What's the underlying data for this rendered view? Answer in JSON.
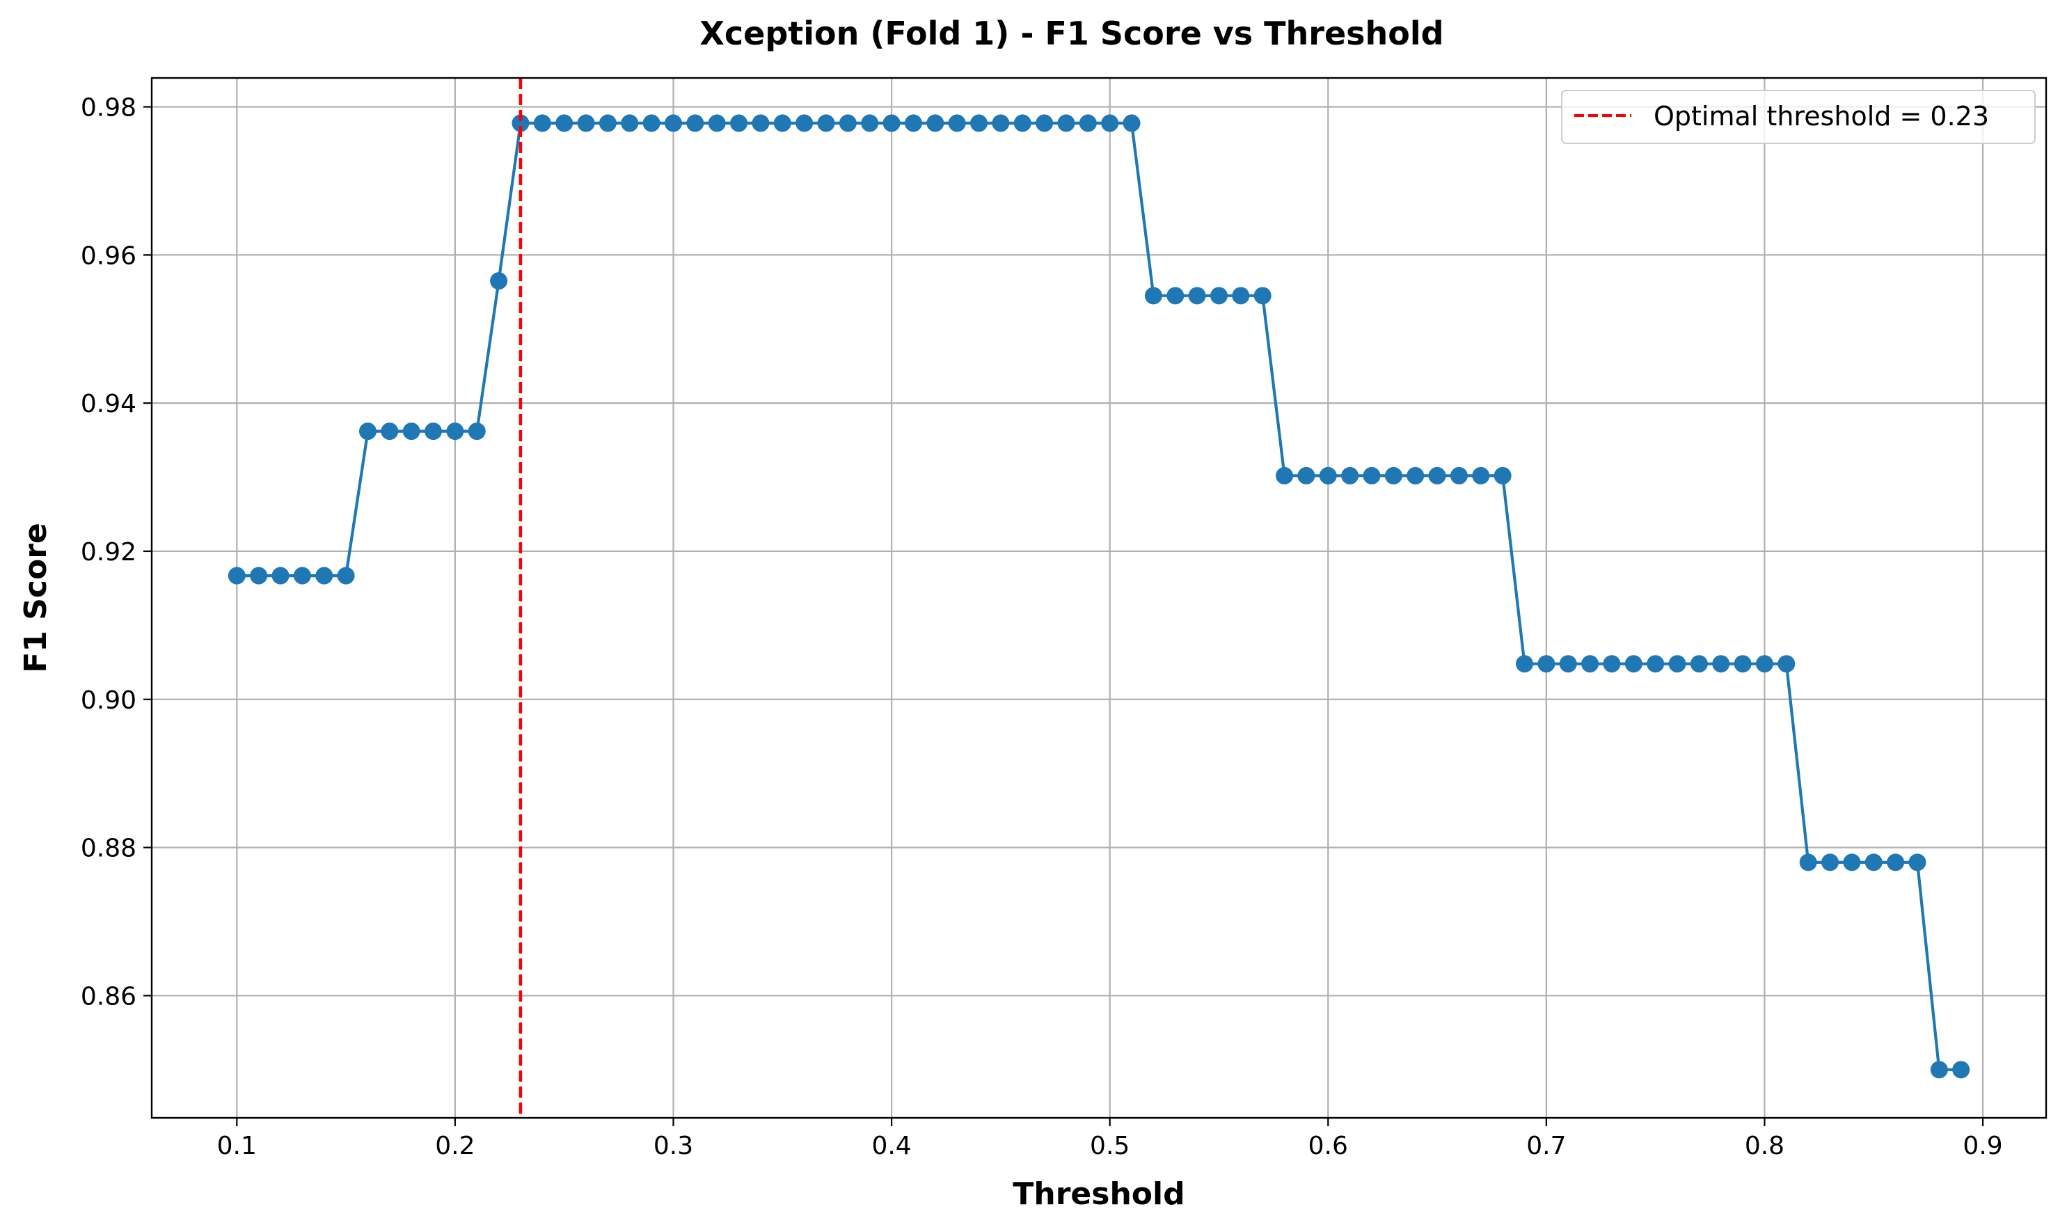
{
  "chart_data": {
    "type": "line",
    "title": "Xception (Fold 1) - F1 Score vs Threshold",
    "xlabel": "Threshold",
    "ylabel": "F1 Score",
    "xlim": [
      0.061,
      0.929
    ],
    "ylim": [
      0.8435,
      0.9839
    ],
    "xticks": [
      0.1,
      0.2,
      0.3,
      0.4,
      0.5,
      0.6,
      0.7,
      0.8,
      0.9
    ],
    "xtick_labels": [
      "0.1",
      "0.2",
      "0.3",
      "0.4",
      "0.5",
      "0.6",
      "0.7",
      "0.8",
      "0.9"
    ],
    "yticks": [
      0.86,
      0.88,
      0.9,
      0.92,
      0.94,
      0.96,
      0.98
    ],
    "ytick_labels": [
      "0.86",
      "0.88",
      "0.90",
      "0.92",
      "0.94",
      "0.96",
      "0.98"
    ],
    "grid": true,
    "legend_position": "top-right",
    "series": [
      {
        "marker": "circle",
        "color": "#1f77b4",
        "x": [
          0.1,
          0.11,
          0.12,
          0.13,
          0.14,
          0.15,
          0.16,
          0.17,
          0.18,
          0.19,
          0.2,
          0.21,
          0.22,
          0.23,
          0.24,
          0.25,
          0.26,
          0.27,
          0.28,
          0.29,
          0.3,
          0.31,
          0.32,
          0.33,
          0.34,
          0.35,
          0.36,
          0.37,
          0.38,
          0.39,
          0.4,
          0.41,
          0.42,
          0.43,
          0.44,
          0.45,
          0.46,
          0.47,
          0.48,
          0.49,
          0.5,
          0.51,
          0.52,
          0.53,
          0.54,
          0.55,
          0.56,
          0.57,
          0.58,
          0.59,
          0.6,
          0.61,
          0.62,
          0.63,
          0.64,
          0.65,
          0.66,
          0.67,
          0.68,
          0.69,
          0.7,
          0.71,
          0.72,
          0.73,
          0.74,
          0.75,
          0.76,
          0.77,
          0.78,
          0.79,
          0.8,
          0.81,
          0.82,
          0.83,
          0.84,
          0.85,
          0.86,
          0.87,
          0.88,
          0.89
        ],
        "y": [
          0.9167,
          0.9167,
          0.9167,
          0.9167,
          0.9167,
          0.9167,
          0.9362,
          0.9362,
          0.9362,
          0.9362,
          0.9362,
          0.9362,
          0.9565,
          0.9778,
          0.9778,
          0.9778,
          0.9778,
          0.9778,
          0.9778,
          0.9778,
          0.9778,
          0.9778,
          0.9778,
          0.9778,
          0.9778,
          0.9778,
          0.9778,
          0.9778,
          0.9778,
          0.9778,
          0.9778,
          0.9778,
          0.9778,
          0.9778,
          0.9778,
          0.9778,
          0.9778,
          0.9778,
          0.9778,
          0.9778,
          0.9778,
          0.9778,
          0.9545,
          0.9545,
          0.9545,
          0.9545,
          0.9545,
          0.9545,
          0.9302,
          0.9302,
          0.9302,
          0.9302,
          0.9302,
          0.9302,
          0.9302,
          0.9302,
          0.9302,
          0.9302,
          0.9302,
          0.9048,
          0.9048,
          0.9048,
          0.9048,
          0.9048,
          0.9048,
          0.9048,
          0.9048,
          0.9048,
          0.9048,
          0.9048,
          0.9048,
          0.9048,
          0.878,
          0.878,
          0.878,
          0.878,
          0.878,
          0.878,
          0.85,
          0.85
        ]
      }
    ],
    "reference_lines": [
      {
        "orientation": "vertical",
        "x": 0.23,
        "style": "dashed",
        "color": "#ff0000",
        "label": "Optimal threshold = 0.23"
      }
    ]
  }
}
